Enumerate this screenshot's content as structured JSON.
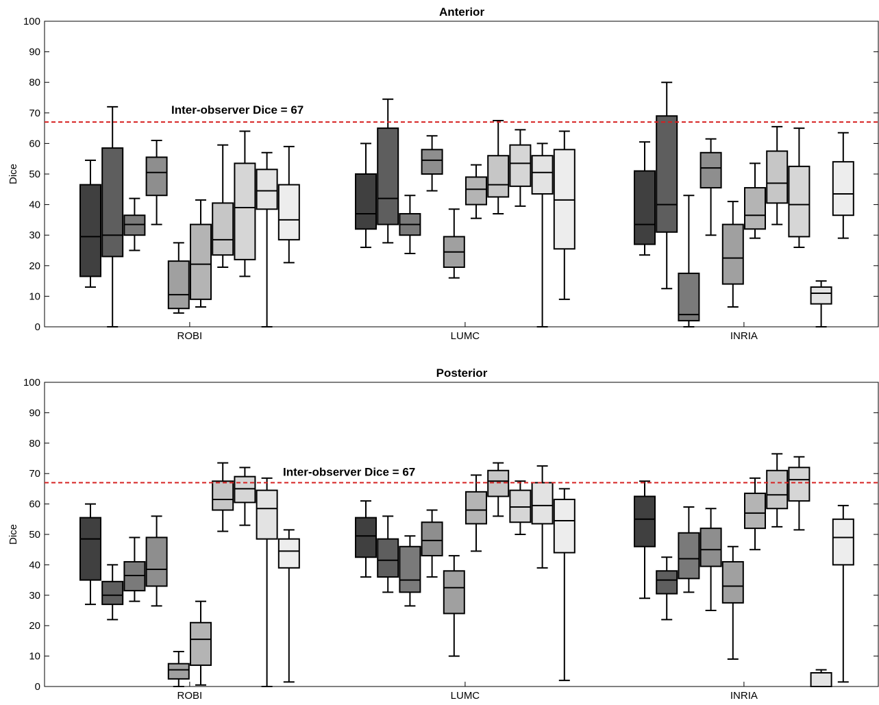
{
  "chart_data": [
    {
      "type": "box",
      "title": "Anterior",
      "ylabel": "Dice",
      "ylim": [
        0,
        100
      ],
      "yticks": [
        0,
        10,
        20,
        30,
        40,
        50,
        60,
        70,
        80,
        90,
        100
      ],
      "categories": [
        "ROBI",
        "LUMC",
        "INRIA"
      ],
      "reference_line": {
        "value": 67,
        "label": "Inter-observer Dice = 67",
        "color": "#d62020"
      },
      "shades": [
        "#404040",
        "#5e5e5e",
        "#7a7a7a",
        "#8e8e8e",
        "#a0a0a0",
        "#b4b4b4",
        "#c6c6c6",
        "#d6d6d6",
        "#e3e3e3",
        "#ededed"
      ],
      "groups": [
        {
          "category": "ROBI",
          "boxes": [
            {
              "min": 13,
              "q1": 16.5,
              "median": 29.5,
              "q3": 46.5,
              "max": 54.5
            },
            {
              "min": 0,
              "q1": 23,
              "median": 30,
              "q3": 58.5,
              "max": 72
            },
            {
              "min": 25,
              "q1": 30,
              "median": 33.5,
              "q3": 36.5,
              "max": 42
            },
            {
              "min": 33.5,
              "q1": 43,
              "median": 50.5,
              "q3": 55.5,
              "max": 61
            },
            {
              "min": 4.5,
              "q1": 6,
              "median": 10.5,
              "q3": 21.5,
              "max": 27.5
            },
            {
              "min": 6.5,
              "q1": 9,
              "median": 20.5,
              "q3": 33.5,
              "max": 41.5
            },
            {
              "min": 19.5,
              "q1": 23.5,
              "median": 28.5,
              "q3": 40.5,
              "max": 59.5
            },
            {
              "min": 16.5,
              "q1": 22,
              "median": 39,
              "q3": 53.5,
              "max": 64
            },
            {
              "min": 0,
              "q1": 38.5,
              "median": 44.5,
              "q3": 51.5,
              "max": 57
            },
            {
              "min": 21,
              "q1": 28.5,
              "median": 35,
              "q3": 46.5,
              "max": 59
            }
          ]
        },
        {
          "category": "LUMC",
          "boxes": [
            {
              "min": 26,
              "q1": 32,
              "median": 37,
              "q3": 50,
              "max": 60
            },
            {
              "min": 27.5,
              "q1": 33.5,
              "median": 42,
              "q3": 65,
              "max": 74.5
            },
            {
              "min": 24,
              "q1": 30,
              "median": 33.5,
              "q3": 37,
              "max": 43
            },
            {
              "min": 44.5,
              "q1": 50,
              "median": 54.5,
              "q3": 58,
              "max": 62.5
            },
            {
              "min": 16,
              "q1": 19.5,
              "median": 24.5,
              "q3": 29.5,
              "max": 38.5
            },
            {
              "min": 35.5,
              "q1": 40,
              "median": 45,
              "q3": 49,
              "max": 53
            },
            {
              "min": 37,
              "q1": 42.5,
              "median": 46.5,
              "q3": 56,
              "max": 67.5
            },
            {
              "min": 39.5,
              "q1": 46,
              "median": 53.5,
              "q3": 59.5,
              "max": 64.5
            },
            {
              "min": 0,
              "q1": 43.5,
              "median": 50.5,
              "q3": 56,
              "max": 60
            },
            {
              "min": 9,
              "q1": 25.5,
              "median": 41.5,
              "q3": 58,
              "max": 64
            }
          ]
        },
        {
          "category": "INRIA",
          "boxes": [
            {
              "min": 23.5,
              "q1": 27,
              "median": 33.5,
              "q3": 51,
              "max": 60.5
            },
            {
              "min": 12.5,
              "q1": 31,
              "median": 40,
              "q3": 69,
              "max": 80
            },
            {
              "min": 0,
              "q1": 2,
              "median": 4,
              "q3": 17.5,
              "max": 43
            },
            {
              "min": 30,
              "q1": 45.5,
              "median": 52,
              "q3": 57,
              "max": 61.5
            },
            {
              "min": 6.5,
              "q1": 14,
              "median": 22.5,
              "q3": 33.5,
              "max": 41
            },
            {
              "min": 29,
              "q1": 32,
              "median": 36.5,
              "q3": 45.5,
              "max": 53.5
            },
            {
              "min": 33.5,
              "q1": 40.5,
              "median": 47,
              "q3": 57.5,
              "max": 65.5
            },
            {
              "min": 26,
              "q1": 29.5,
              "median": 40,
              "q3": 52.5,
              "max": 65
            },
            {
              "min": 0,
              "q1": 7.5,
              "median": 11,
              "q3": 13,
              "max": 15
            },
            {
              "min": 29,
              "q1": 36.5,
              "median": 43.5,
              "q3": 54,
              "max": 63.5
            }
          ]
        }
      ]
    },
    {
      "type": "box",
      "title": "Posterior",
      "ylabel": "Dice",
      "ylim": [
        0,
        100
      ],
      "yticks": [
        0,
        10,
        20,
        30,
        40,
        50,
        60,
        70,
        80,
        90,
        100
      ],
      "categories": [
        "ROBI",
        "LUMC",
        "INRIA"
      ],
      "reference_line": {
        "value": 67,
        "label": "Inter-observer Dice = 67",
        "color": "#d62020"
      },
      "shades": [
        "#404040",
        "#5e5e5e",
        "#7a7a7a",
        "#8e8e8e",
        "#a0a0a0",
        "#b4b4b4",
        "#c6c6c6",
        "#d6d6d6",
        "#e3e3e3",
        "#ededed"
      ],
      "groups": [
        {
          "category": "ROBI",
          "boxes": [
            {
              "min": 27,
              "q1": 35,
              "median": 48.5,
              "q3": 55.5,
              "max": 60
            },
            {
              "min": 22,
              "q1": 27,
              "median": 30,
              "q3": 34.5,
              "max": 40
            },
            {
              "min": 28,
              "q1": 31.5,
              "median": 36.5,
              "q3": 41,
              "max": 49
            },
            {
              "min": 26.5,
              "q1": 33,
              "median": 38.5,
              "q3": 49,
              "max": 56
            },
            {
              "min": 0,
              "q1": 2.5,
              "median": 5.5,
              "q3": 7.5,
              "max": 11.5
            },
            {
              "min": 0.5,
              "q1": 7,
              "median": 15.5,
              "q3": 21,
              "max": 28
            },
            {
              "min": 51,
              "q1": 58,
              "median": 61.5,
              "q3": 67.5,
              "max": 73.5
            },
            {
              "min": 53,
              "q1": 60.5,
              "median": 65,
              "q3": 69,
              "max": 72
            },
            {
              "min": 0,
              "q1": 48.5,
              "median": 58.5,
              "q3": 64.5,
              "max": 68.5
            },
            {
              "min": 1.5,
              "q1": 39,
              "median": 44.5,
              "q3": 48.5,
              "max": 51.5
            }
          ]
        },
        {
          "category": "LUMC",
          "boxes": [
            {
              "min": 36,
              "q1": 42.5,
              "median": 49.5,
              "q3": 55.5,
              "max": 61
            },
            {
              "min": 31,
              "q1": 36,
              "median": 41.5,
              "q3": 48.5,
              "max": 56
            },
            {
              "min": 26.5,
              "q1": 31,
              "median": 35,
              "q3": 46,
              "max": 49.5
            },
            {
              "min": 36,
              "q1": 43,
              "median": 48,
              "q3": 54,
              "max": 58
            },
            {
              "min": 10,
              "q1": 24,
              "median": 32.5,
              "q3": 38,
              "max": 43
            },
            {
              "min": 44.5,
              "q1": 53.5,
              "median": 58,
              "q3": 64,
              "max": 69.5
            },
            {
              "min": 56,
              "q1": 62.5,
              "median": 67.5,
              "q3": 71,
              "max": 73.5
            },
            {
              "min": 50,
              "q1": 54,
              "median": 59,
              "q3": 64.5,
              "max": 67.5
            },
            {
              "min": 39,
              "q1": 53.5,
              "median": 59.5,
              "q3": 67,
              "max": 72.5
            },
            {
              "min": 2,
              "q1": 44,
              "median": 54.5,
              "q3": 61.5,
              "max": 65
            }
          ]
        },
        {
          "category": "INRIA",
          "boxes": [
            {
              "min": 29,
              "q1": 46,
              "median": 55,
              "q3": 62.5,
              "max": 67.5
            },
            {
              "min": 22,
              "q1": 30.5,
              "median": 35,
              "q3": 38,
              "max": 42.5
            },
            {
              "min": 31,
              "q1": 35.5,
              "median": 42,
              "q3": 50.5,
              "max": 59
            },
            {
              "min": 25,
              "q1": 39.5,
              "median": 45,
              "q3": 52,
              "max": 58.5
            },
            {
              "min": 9,
              "q1": 27.5,
              "median": 33,
              "q3": 41,
              "max": 46
            },
            {
              "min": 45,
              "q1": 52,
              "median": 57,
              "q3": 63.5,
              "max": 68.5
            },
            {
              "min": 52.5,
              "q1": 58.5,
              "median": 63,
              "q3": 71,
              "max": 76.5
            },
            {
              "min": 51.5,
              "q1": 61,
              "median": 68,
              "q3": 72,
              "max": 75.5
            },
            {
              "min": 0,
              "q1": 0,
              "median": 0,
              "q3": 4.5,
              "max": 5.5
            },
            {
              "min": 1.5,
              "q1": 40,
              "median": 49,
              "q3": 55,
              "max": 59.5
            }
          ]
        }
      ]
    }
  ]
}
